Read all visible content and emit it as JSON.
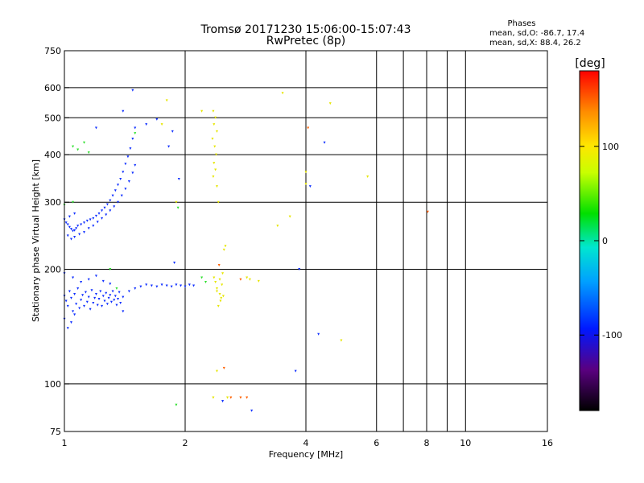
{
  "chart_data": {
    "type": "scatter",
    "title": "Tromsø 20171230 15:06:00-15:07:43",
    "subtitle": "RwPretec (8p)",
    "xlabel": "Frequency [MHz]",
    "ylabel": "Stationary phase Virtual Height [km]",
    "xscale": "log",
    "yscale": "log",
    "xlim": [
      1,
      16
    ],
    "ylim": [
      75,
      750
    ],
    "x_ticks": [
      1,
      2,
      4,
      6,
      8,
      10,
      16
    ],
    "y_ticks": [
      75,
      100,
      200,
      300,
      400,
      500,
      600,
      750
    ],
    "grid": true,
    "phases": {
      "heading": "Phases",
      "line_o": "mean, sd,O: -86.7, 17.4",
      "line_x": "mean, sd,X:  88.4, 26.2"
    },
    "colorbar": {
      "label": "[deg]",
      "range": [
        -180,
        180
      ],
      "ticks": [
        100,
        0,
        -100
      ]
    },
    "series": [
      {
        "name": "",
        "points": [
          [
            1.0,
            270
          ],
          [
            1.01,
            265
          ],
          [
            1.02,
            262
          ],
          [
            1.03,
            258
          ],
          [
            1.04,
            255
          ],
          [
            1.05,
            252
          ],
          [
            1.06,
            253
          ],
          [
            1.07,
            256
          ],
          [
            1.08,
            260
          ],
          [
            1.1,
            262
          ],
          [
            1.12,
            265
          ],
          [
            1.14,
            268
          ],
          [
            1.16,
            270
          ],
          [
            1.18,
            272
          ],
          [
            1.2,
            276
          ],
          [
            1.22,
            280
          ],
          [
            1.24,
            285
          ],
          [
            1.26,
            290
          ],
          [
            1.28,
            296
          ],
          [
            1.3,
            303
          ],
          [
            1.32,
            312
          ],
          [
            1.34,
            322
          ],
          [
            1.36,
            333
          ],
          [
            1.38,
            345
          ],
          [
            1.4,
            360
          ],
          [
            1.42,
            378
          ],
          [
            1.44,
            395
          ],
          [
            1.46,
            415
          ],
          [
            1.48,
            440
          ],
          [
            1.5,
            470
          ],
          [
            1.02,
            245
          ],
          [
            1.04,
            240
          ],
          [
            1.06,
            243
          ],
          [
            1.09,
            247
          ],
          [
            1.12,
            250
          ],
          [
            1.15,
            256
          ],
          [
            1.18,
            260
          ],
          [
            1.21,
            266
          ],
          [
            1.24,
            272
          ],
          [
            1.27,
            278
          ],
          [
            1.3,
            285
          ],
          [
            1.33,
            292
          ],
          [
            1.36,
            300
          ],
          [
            1.39,
            312
          ],
          [
            1.42,
            325
          ],
          [
            1.45,
            340
          ],
          [
            1.48,
            358
          ],
          [
            1.5,
            375
          ],
          [
            1.03,
            275
          ],
          [
            1.06,
            280
          ],
          [
            1.0,
            170
          ],
          [
            1.01,
            165
          ],
          [
            1.02,
            160
          ],
          [
            1.03,
            175
          ],
          [
            1.04,
            168
          ],
          [
            1.05,
            155
          ],
          [
            1.06,
            172
          ],
          [
            1.07,
            162
          ],
          [
            1.08,
            178
          ],
          [
            1.09,
            158
          ],
          [
            1.1,
            166
          ],
          [
            1.11,
            171
          ],
          [
            1.12,
            160
          ],
          [
            1.13,
            174
          ],
          [
            1.14,
            164
          ],
          [
            1.15,
            169
          ],
          [
            1.16,
            157
          ],
          [
            1.17,
            176
          ],
          [
            1.18,
            163
          ],
          [
            1.19,
            168
          ],
          [
            1.2,
            172
          ],
          [
            1.21,
            161
          ],
          [
            1.22,
            167
          ],
          [
            1.23,
            175
          ],
          [
            1.24,
            160
          ],
          [
            1.25,
            170
          ],
          [
            1.26,
            165
          ],
          [
            1.27,
            173
          ],
          [
            1.28,
            162
          ],
          [
            1.29,
            168
          ],
          [
            1.3,
            171
          ],
          [
            1.31,
            164
          ],
          [
            1.32,
            175
          ],
          [
            1.33,
            166
          ],
          [
            1.34,
            170
          ],
          [
            1.35,
            161
          ],
          [
            1.36,
            167
          ],
          [
            1.37,
            174
          ],
          [
            1.38,
            163
          ],
          [
            1.4,
            169
          ],
          [
            1.45,
            175
          ],
          [
            1.5,
            178
          ],
          [
            1.55,
            180
          ],
          [
            1.6,
            182
          ],
          [
            1.65,
            181
          ],
          [
            1.7,
            180
          ],
          [
            1.75,
            182
          ],
          [
            1.8,
            181
          ],
          [
            1.85,
            180
          ],
          [
            1.9,
            182
          ],
          [
            1.95,
            181
          ],
          [
            2.0,
            180
          ],
          [
            2.05,
            182
          ],
          [
            2.1,
            181
          ],
          [
            1.0,
            148
          ],
          [
            1.02,
            140
          ],
          [
            1.04,
            145
          ],
          [
            1.06,
            152
          ],
          [
            1.0,
            195
          ],
          [
            1.05,
            190
          ],
          [
            1.1,
            185
          ],
          [
            1.15,
            188
          ],
          [
            1.2,
            192
          ],
          [
            1.25,
            186
          ],
          [
            1.3,
            183
          ],
          [
            1.48,
            590
          ],
          [
            1.7,
            495
          ],
          [
            1.6,
            480
          ],
          [
            1.2,
            470
          ],
          [
            1.4,
            520
          ],
          [
            1.86,
            460
          ],
          [
            1.82,
            420
          ],
          [
            1.93,
            345
          ],
          [
            1.88,
            208
          ],
          [
            1.4,
            155
          ],
          [
            3.77,
            108
          ],
          [
            4.3,
            135
          ],
          [
            4.1,
            330
          ],
          [
            2.93,
            85
          ],
          [
            2.48,
            90
          ],
          [
            3.85,
            200
          ],
          [
            4.45,
            430
          ]
        ],
        "phase": -100
      },
      {
        "name": "",
        "points": [
          [
            2.35,
            520
          ],
          [
            2.38,
            500
          ],
          [
            2.36,
            480
          ],
          [
            2.4,
            460
          ],
          [
            2.34,
            440
          ],
          [
            2.37,
            420
          ],
          [
            2.39,
            400
          ],
          [
            2.36,
            380
          ],
          [
            2.38,
            365
          ],
          [
            2.35,
            350
          ],
          [
            2.4,
            330
          ],
          [
            2.42,
            300
          ],
          [
            2.38,
            185
          ],
          [
            2.4,
            178
          ],
          [
            2.44,
            172
          ],
          [
            2.46,
            168
          ],
          [
            2.42,
            160
          ],
          [
            2.36,
            190
          ],
          [
            2.48,
            195
          ],
          [
            2.44,
            188
          ],
          [
            2.52,
            230
          ],
          [
            2.5,
            225
          ],
          [
            2.4,
            175
          ],
          [
            2.45,
            165
          ],
          [
            2.47,
            182
          ],
          [
            2.49,
            170
          ],
          [
            3.5,
            580
          ],
          [
            3.65,
            275
          ],
          [
            4.0,
            360
          ],
          [
            4.0,
            335
          ],
          [
            4.6,
            545
          ],
          [
            5.7,
            350
          ],
          [
            4.9,
            130
          ],
          [
            2.85,
            190
          ],
          [
            2.9,
            188
          ],
          [
            3.05,
            186
          ],
          [
            2.4,
            108
          ],
          [
            2.35,
            92
          ],
          [
            2.55,
            92
          ],
          [
            2.2,
            520
          ],
          [
            1.75,
            480
          ],
          [
            1.9,
            300
          ],
          [
            1.8,
            555
          ],
          [
            3.4,
            260
          ]
        ],
        "phase": 100
      },
      {
        "name": "",
        "points": [
          [
            1.05,
            420
          ],
          [
            1.08,
            412
          ],
          [
            1.12,
            430
          ],
          [
            1.15,
            405
          ],
          [
            1.3,
            200
          ],
          [
            1.35,
            178
          ],
          [
            1.92,
            290
          ],
          [
            1.9,
            88
          ],
          [
            2.2,
            190
          ],
          [
            2.25,
            185
          ],
          [
            1.0,
            295
          ],
          [
            1.05,
            300
          ],
          [
            1.5,
            455
          ]
        ],
        "phase": 20
      },
      {
        "name": "",
        "points": [
          [
            2.75,
            188
          ],
          [
            2.6,
            92
          ],
          [
            2.75,
            92
          ],
          [
            2.85,
            92
          ],
          [
            2.5,
            110
          ],
          [
            4.05,
            470
          ],
          [
            8.05,
            283
          ],
          [
            2.43,
            205
          ]
        ],
        "phase": 150
      }
    ]
  }
}
